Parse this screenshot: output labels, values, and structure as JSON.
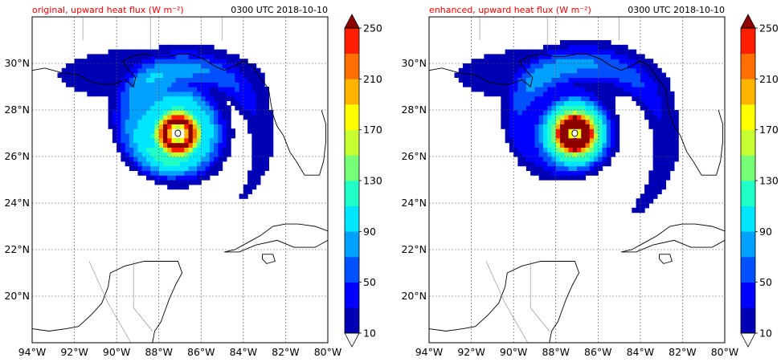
{
  "panels": [
    {
      "key": "original",
      "title": "original, upward heat flux (W m⁻²)",
      "time": "0300 UTC 2018-10-10"
    },
    {
      "key": "enhanced",
      "title": "enhanced, upward heat flux (W m⁻²)",
      "time": "0300 UTC 2018-10-10"
    }
  ],
  "map_extent": {
    "lon_min": -94,
    "lon_max": -80,
    "lat_min": 18,
    "lat_max": 32
  },
  "lon_ticks": [
    {
      "value": -94,
      "label": "94°W"
    },
    {
      "value": -92,
      "label": "92°W"
    },
    {
      "value": -90,
      "label": "90°W"
    },
    {
      "value": -88,
      "label": "88°W"
    },
    {
      "value": -86,
      "label": "86°W"
    },
    {
      "value": -84,
      "label": "84°W"
    },
    {
      "value": -82,
      "label": "82°W"
    },
    {
      "value": -80,
      "label": "80°W"
    }
  ],
  "lat_ticks": [
    {
      "value": 20,
      "label": "20°N"
    },
    {
      "value": 22,
      "label": "22°N"
    },
    {
      "value": 24,
      "label": "24°N"
    },
    {
      "value": 26,
      "label": "26°N"
    },
    {
      "value": 28,
      "label": "28°N"
    },
    {
      "value": 30,
      "label": "30°N"
    }
  ],
  "colorbar": {
    "levels": [
      10,
      30,
      50,
      70,
      90,
      110,
      130,
      150,
      170,
      190,
      210,
      230,
      250
    ],
    "tick_labels": [
      "10",
      "50",
      "90",
      "130",
      "170",
      "210",
      "250"
    ],
    "colors": [
      "#0000b4",
      "#0000ff",
      "#0050ff",
      "#00a0ff",
      "#00e6ff",
      "#20ffc8",
      "#78ff78",
      "#c8ff32",
      "#ffff00",
      "#ffb400",
      "#ff6e00",
      "#ff1e00"
    ],
    "over_color": "#8c0000",
    "under_color": "#ffffff"
  },
  "storm": {
    "center_lon": -87.1,
    "center_lat": 27.0
  }
}
